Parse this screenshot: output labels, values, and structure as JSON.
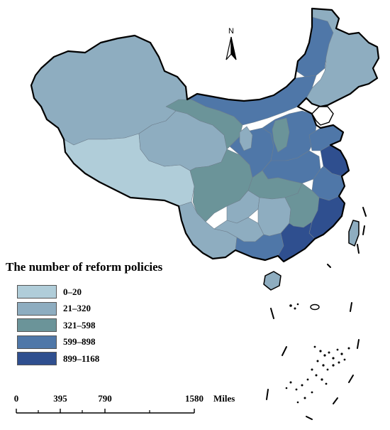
{
  "legend": {
    "title": "The number of reform policies",
    "items": [
      {
        "label": "0–20",
        "color": "#b0cdd9"
      },
      {
        "label": "21–320",
        "color": "#8eadc0"
      },
      {
        "label": "321–598",
        "color": "#6b9499"
      },
      {
        "label": "599–898",
        "color": "#4f77a8"
      },
      {
        "label": "899–1168",
        "color": "#2f4f8f"
      }
    ]
  },
  "scale_bar": {
    "ticks": [
      "0",
      "395",
      "790",
      "1580"
    ],
    "unit": "Miles"
  },
  "north_arrow": {
    "letter": "N",
    "icon": "north-arrow-icon"
  }
}
